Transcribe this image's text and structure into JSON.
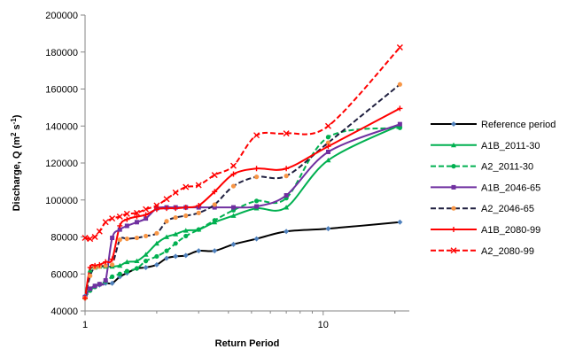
{
  "chart_data": {
    "type": "line",
    "xscale": "log",
    "xlabel": "Return Period",
    "ylabel": {
      "main": "Discharge, Q (m",
      "sup1": "2",
      "mid": " s",
      "sup2": "-1",
      "end": ")"
    },
    "xlim": [
      1,
      23
    ],
    "ylim": [
      40000,
      200000
    ],
    "x_ticks": [
      1,
      10
    ],
    "x_tick_labels": [
      "1",
      "10"
    ],
    "y_ticks": [
      40000,
      60000,
      80000,
      100000,
      120000,
      140000,
      160000,
      180000,
      200000
    ],
    "y_tick_labels": [
      "40000",
      "60000",
      "80000",
      "100000",
      "120000",
      "140000",
      "160000",
      "180000",
      "200000"
    ],
    "grid": false,
    "legend_position": "right",
    "series": [
      {
        "name": "Reference period",
        "color": "#000000",
        "marker_color": "#4F81BD",
        "dashed": false,
        "marker": "diamond",
        "x": [
          1.0,
          1.05,
          1.1,
          1.15,
          1.22,
          1.3,
          1.4,
          1.5,
          1.65,
          1.8,
          2.0,
          2.2,
          2.4,
          2.65,
          3.0,
          3.5,
          4.2,
          5.25,
          7.0,
          10.5,
          21.0
        ],
        "y": [
          48000,
          52000,
          53500,
          54000,
          55000,
          55000,
          58500,
          60500,
          63000,
          63500,
          65000,
          68500,
          69500,
          70000,
          72500,
          72500,
          76000,
          79000,
          83000,
          84500,
          88000
        ]
      },
      {
        "name": "A1B_2011-30",
        "color": "#00B050",
        "marker_color": "#00B050",
        "dashed": false,
        "marker": "triangle",
        "x": [
          1.0,
          1.05,
          1.1,
          1.15,
          1.22,
          1.3,
          1.4,
          1.5,
          1.65,
          1.8,
          2.0,
          2.2,
          2.4,
          2.65,
          3.0,
          3.5,
          4.2,
          5.25,
          7.0,
          10.5,
          21.0
        ],
        "y": [
          47500,
          62000,
          63500,
          64000,
          64000,
          64000,
          64500,
          66500,
          67000,
          70500,
          76500,
          80000,
          81500,
          83500,
          84000,
          88000,
          91500,
          95500,
          96000,
          121500,
          140500
        ]
      },
      {
        "name": "A2_2011-30",
        "color": "#00B050",
        "marker_color": "#00B050",
        "dashed": true,
        "marker": "circle",
        "x": [
          1.0,
          1.05,
          1.1,
          1.15,
          1.22,
          1.3,
          1.4,
          1.5,
          1.65,
          1.8,
          2.0,
          2.2,
          2.4,
          2.65,
          3.0,
          3.5,
          4.2,
          5.25,
          7.0,
          10.5,
          21.0
        ],
        "y": [
          47000,
          51000,
          53000,
          54500,
          56000,
          58500,
          60000,
          61500,
          63000,
          67000,
          69500,
          72500,
          76500,
          80500,
          84000,
          89000,
          94500,
          99500,
          101000,
          134000,
          139000
        ]
      },
      {
        "name": "A1B_2046-65",
        "color": "#7030A0",
        "marker_color": "#7030A0",
        "dashed": false,
        "marker": "square",
        "x": [
          1.0,
          1.05,
          1.1,
          1.15,
          1.22,
          1.3,
          1.4,
          1.5,
          1.65,
          1.8,
          2.0,
          2.2,
          2.4,
          2.65,
          3.0,
          3.5,
          4.2,
          5.25,
          7.0,
          10.5,
          21.0
        ],
        "y": [
          47500,
          52000,
          53500,
          54500,
          56500,
          79500,
          84000,
          86000,
          88000,
          90000,
          95500,
          96000,
          96000,
          96000,
          96000,
          96000,
          96000,
          96500,
          102500,
          126000,
          141000
        ]
      },
      {
        "name": "A2_2046-65",
        "color": "#1F1F3F",
        "marker_color": "#F79646",
        "dashed": true,
        "marker": "circle",
        "x": [
          1.0,
          1.05,
          1.1,
          1.15,
          1.22,
          1.3,
          1.4,
          1.5,
          1.65,
          1.8,
          2.0,
          2.2,
          2.4,
          2.65,
          3.0,
          3.5,
          4.2,
          5.25,
          7.0,
          10.5,
          21.0
        ],
        "y": [
          47000,
          59000,
          63500,
          64000,
          64500,
          65000,
          78500,
          79000,
          79500,
          80500,
          82000,
          88500,
          90500,
          91500,
          93000,
          97500,
          107500,
          112500,
          113000,
          131000,
          162500
        ]
      },
      {
        "name": "A1B_2080-99",
        "color": "#FF0000",
        "marker_color": "#FF0000",
        "dashed": false,
        "marker": "plus",
        "x": [
          1.0,
          1.05,
          1.1,
          1.15,
          1.22,
          1.3,
          1.4,
          1.5,
          1.65,
          1.8,
          2.0,
          2.2,
          2.4,
          2.65,
          3.0,
          3.5,
          4.2,
          5.25,
          7.0,
          10.5,
          21.0
        ],
        "y": [
          47000,
          63500,
          64500,
          65000,
          66500,
          68000,
          86000,
          89500,
          91000,
          92000,
          95000,
          95500,
          95500,
          96000,
          97000,
          104500,
          114000,
          117000,
          117000,
          129000,
          149500
        ]
      },
      {
        "name": "A2_2080-99",
        "color": "#FF0000",
        "marker_color": "#FF0000",
        "dashed": true,
        "marker": "x",
        "x": [
          1.0,
          1.05,
          1.1,
          1.15,
          1.22,
          1.3,
          1.4,
          1.5,
          1.65,
          1.8,
          2.0,
          2.2,
          2.4,
          2.65,
          3.0,
          3.5,
          4.2,
          5.25,
          7.0,
          10.5,
          21.0
        ],
        "y": [
          79500,
          79000,
          80000,
          83000,
          88000,
          90000,
          91000,
          92500,
          93000,
          95000,
          97000,
          100500,
          104000,
          107000,
          108000,
          113500,
          118500,
          135000,
          136000,
          140000,
          182500
        ]
      }
    ]
  }
}
